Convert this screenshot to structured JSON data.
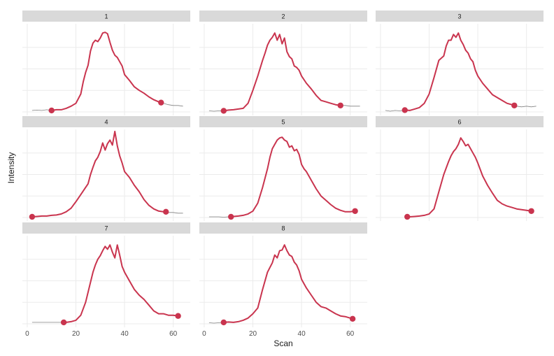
{
  "chart_data": {
    "type": "line",
    "layout": "faceted small multiples, 3 columns",
    "xlabel": "Scan",
    "ylabel": "Intensity",
    "xlim": [
      -2,
      67
    ],
    "x_ticks": [
      0,
      20,
      40,
      60
    ],
    "x_tick_labels": [
      "0",
      "20",
      "40",
      "60"
    ],
    "y_tick_labels_shown": false,
    "colors": {
      "highlight": "#c9344e",
      "background_trace": "#808080",
      "strip": "#d9d9d9",
      "grid": "#ebebeb"
    },
    "panels": [
      {
        "label": "1",
        "x": [
          2,
          4,
          6,
          8,
          10,
          12,
          14,
          16,
          18,
          20,
          22,
          23,
          24,
          25,
          26,
          27,
          28,
          29,
          30,
          31,
          32,
          33,
          34,
          35,
          36,
          37,
          38,
          39,
          40,
          42,
          44,
          46,
          48,
          50,
          52,
          54,
          55,
          56,
          58,
          60,
          62,
          64
        ],
        "y": [
          2,
          2.5,
          2,
          3,
          2,
          3,
          3,
          5,
          8,
          12,
          25,
          42,
          55,
          65,
          85,
          96,
          100,
          98,
          103,
          110,
          111,
          109,
          97,
          86,
          79,
          76,
          70,
          64,
          52,
          44,
          35,
          30,
          26,
          21,
          17,
          14,
          13,
          12,
          10,
          9,
          9,
          8
        ],
        "start": [
          10,
          2
        ],
        "end": [
          55,
          13
        ]
      },
      {
        "label": "2",
        "x": [
          2,
          4,
          6,
          8,
          10,
          12,
          14,
          16,
          18,
          20,
          22,
          24,
          25,
          26,
          27,
          28,
          29,
          30,
          31,
          32,
          33,
          34,
          35,
          36,
          37,
          38,
          39,
          40,
          42,
          44,
          46,
          48,
          50,
          52,
          54,
          56,
          58,
          60,
          62,
          64
        ],
        "y": [
          1.5,
          1,
          1.5,
          1.5,
          2.5,
          3,
          4,
          5,
          12,
          30,
          50,
          72,
          82,
          93,
          100,
          104,
          110,
          100,
          108,
          95,
          103,
          84,
          77,
          74,
          64,
          62,
          58,
          50,
          40,
          32,
          23,
          16,
          14,
          12,
          10,
          9,
          9,
          8,
          8,
          8
        ],
        "start": [
          8,
          1.5
        ],
        "end": [
          56,
          9
        ]
      },
      {
        "label": "3",
        "x": [
          2,
          4,
          6,
          8,
          10,
          12,
          14,
          16,
          18,
          20,
          22,
          24,
          26,
          27,
          28,
          29,
          30,
          31,
          32,
          33,
          34,
          35,
          36,
          37,
          38,
          39,
          40,
          42,
          44,
          46,
          48,
          50,
          52,
          54,
          55,
          56,
          58,
          60,
          62,
          64
        ],
        "y": [
          2,
          1,
          2,
          1.5,
          2.5,
          2,
          4,
          6,
          12,
          25,
          48,
          72,
          78,
          92,
          100,
          100,
          108,
          104,
          110,
          100,
          94,
          86,
          82,
          74,
          70,
          58,
          50,
          40,
          32,
          24,
          20,
          16,
          12,
          10,
          9,
          8,
          7,
          8,
          7,
          8
        ],
        "start": [
          10,
          2.5
        ],
        "end": [
          55,
          9
        ]
      },
      {
        "label": "4",
        "x": [
          2,
          4,
          6,
          8,
          10,
          12,
          14,
          16,
          18,
          20,
          22,
          24,
          25,
          26,
          27,
          28,
          29,
          30,
          31,
          32,
          33,
          34,
          35,
          36,
          37,
          38,
          39,
          40,
          42,
          44,
          46,
          48,
          50,
          52,
          54,
          56,
          57,
          58,
          60,
          62,
          64
        ],
        "y": [
          1,
          1.5,
          2,
          2,
          3,
          3.5,
          5,
          8,
          13,
          22,
          32,
          42,
          47,
          60,
          70,
          79,
          84,
          92,
          104,
          94,
          103,
          108,
          101,
          120,
          100,
          86,
          76,
          64,
          56,
          45,
          36,
          25,
          17,
          12,
          9,
          8,
          8,
          7,
          7,
          6,
          6
        ],
        "start": [
          2,
          1
        ],
        "end": [
          57,
          8
        ]
      },
      {
        "label": "5",
        "x": [
          2,
          4,
          6,
          8,
          10,
          12,
          14,
          16,
          18,
          20,
          22,
          24,
          26,
          27,
          28,
          29,
          30,
          31,
          32,
          33,
          34,
          35,
          36,
          37,
          38,
          39,
          40,
          41,
          42,
          44,
          46,
          48,
          50,
          52,
          54,
          56,
          58,
          60,
          62
        ],
        "y": [
          1,
          1,
          1,
          0.5,
          1,
          1.5,
          2,
          3,
          5,
          9,
          20,
          42,
          68,
          84,
          96,
          102,
          108,
          111,
          112,
          108,
          106,
          98,
          100,
          93,
          95,
          88,
          74,
          68,
          64,
          52,
          40,
          30,
          24,
          18,
          13,
          10,
          8,
          8,
          9
        ],
        "start": [
          11,
          1
        ],
        "end": [
          62,
          9
        ]
      },
      {
        "label": "6",
        "x": [
          11,
          12,
          14,
          16,
          18,
          20,
          22,
          24,
          26,
          28,
          29,
          30,
          31,
          32,
          33,
          34,
          35,
          36,
          37,
          38,
          39,
          40,
          42,
          44,
          46,
          48,
          50,
          52,
          54,
          56,
          58,
          60,
          62
        ],
        "y": [
          1,
          1,
          1.5,
          2,
          3,
          5,
          12,
          36,
          60,
          78,
          86,
          92,
          96,
          102,
          111,
          106,
          100,
          102,
          96,
          90,
          84,
          76,
          58,
          45,
          34,
          24,
          19,
          16,
          14,
          12,
          11,
          10,
          9
        ],
        "start": [
          11,
          1
        ],
        "end": [
          62,
          9
        ]
      },
      {
        "label": "7",
        "x": [
          2,
          4,
          6,
          8,
          10,
          12,
          14,
          16,
          18,
          20,
          22,
          24,
          26,
          27,
          28,
          29,
          30,
          31,
          32,
          33,
          34,
          35,
          36,
          37,
          38,
          39,
          40,
          42,
          44,
          46,
          48,
          50,
          52,
          54,
          56,
          58,
          60,
          62
        ],
        "y": [
          2,
          2,
          2,
          2,
          2,
          2,
          2,
          2,
          3,
          5,
          12,
          30,
          58,
          72,
          82,
          90,
          95,
          102,
          108,
          104,
          110,
          100,
          92,
          110,
          96,
          80,
          72,
          60,
          48,
          40,
          34,
          26,
          18,
          14,
          14,
          12,
          12,
          11
        ],
        "start": [
          15,
          2
        ],
        "end": [
          62,
          11
        ]
      },
      {
        "label": "8",
        "x": [
          2,
          4,
          6,
          8,
          10,
          12,
          14,
          16,
          18,
          20,
          22,
          24,
          26,
          28,
          29,
          30,
          31,
          32,
          33,
          34,
          35,
          36,
          37,
          38,
          39,
          40,
          42,
          44,
          46,
          48,
          50,
          52,
          54,
          56,
          58,
          60,
          62
        ],
        "y": [
          1.5,
          1,
          1.5,
          2,
          2.5,
          2,
          3,
          5,
          8,
          14,
          22,
          48,
          72,
          85,
          96,
          92,
          102,
          103,
          110,
          102,
          96,
          94,
          86,
          82,
          74,
          62,
          50,
          40,
          30,
          24,
          22,
          18,
          14,
          11,
          10,
          8,
          7
        ],
        "start": [
          8,
          2
        ],
        "end": [
          61,
          7
        ]
      }
    ]
  }
}
